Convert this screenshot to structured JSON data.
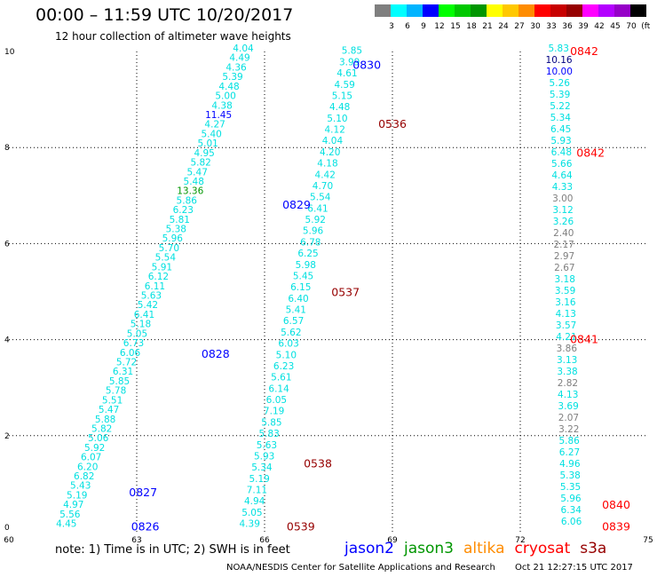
{
  "title": "00:00 – 11:59 UTC 10/20/2017",
  "subtitle": "12 hour collection of altimeter wave heights",
  "note": "note: 1) Time is in UTC; 2) SWH is in feet",
  "footer_left": "NOAA/NESDIS Center for Satellite Applications and Research",
  "footer_right": "Oct 21 12:27:15 UTC 2017",
  "colorbar": {
    "colors": [
      "#7f7f7f",
      "#00ffff",
      "#00b4ff",
      "#0000ff",
      "#00ff00",
      "#00c800",
      "#009600",
      "#ffff00",
      "#ffc800",
      "#ff8c00",
      "#ff0000",
      "#c80000",
      "#960000",
      "#ff00ff",
      "#b400ff",
      "#9600c8",
      "#000000"
    ],
    "labels": [
      "3",
      "6",
      "9",
      "12",
      "15",
      "18",
      "21",
      "24",
      "27",
      "30",
      "33",
      "36",
      "39",
      "42",
      "45",
      "70",
      "(ft)"
    ]
  },
  "legend": [
    {
      "name": "jason2",
      "color": "#0000ff"
    },
    {
      "name": "jason3",
      "color": "#009600"
    },
    {
      "name": "altika",
      "color": "#ff8c00"
    },
    {
      "name": "cryosat",
      "color": "#ff0000"
    },
    {
      "name": "s3a",
      "color": "#960000"
    }
  ],
  "chart_data": {
    "type": "scatter",
    "xlim": [
      60,
      75
    ],
    "ylim": [
      0,
      10
    ],
    "x_ticks": [
      "60",
      "63",
      "66",
      "69",
      "72",
      "75"
    ],
    "y_ticks": [
      "0",
      "2",
      "4",
      "6",
      "8",
      "10"
    ],
    "grid": true,
    "series": [
      {
        "name": "jason2",
        "color": "#0000ff",
        "points": [
          {
            "x": 63.2,
            "y": 0.1,
            "label": "0826"
          },
          {
            "x": 63.15,
            "y": 0.81,
            "label": "0827"
          },
          {
            "x": 64.85,
            "y": 3.7,
            "label": "0828"
          },
          {
            "x": 66.75,
            "y": 6.8,
            "label": "0829"
          },
          {
            "x": 68.4,
            "y": 9.71,
            "label": "0830"
          }
        ]
      },
      {
        "name": "s3a",
        "color": "#960000",
        "points": [
          {
            "x": 66.85,
            "y": 0.1,
            "label": "0539"
          },
          {
            "x": 67.25,
            "y": 1.41,
            "label": "0538"
          },
          {
            "x": 67.9,
            "y": 4.98,
            "label": "0537"
          },
          {
            "x": 69.0,
            "y": 8.48,
            "label": "0536"
          }
        ]
      },
      {
        "name": "cryosat",
        "color": "#ff0000",
        "points": [
          {
            "x": 74.25,
            "y": 0.1,
            "label": "0839"
          },
          {
            "x": 74.25,
            "y": 0.55,
            "label": "0840"
          },
          {
            "x": 73.5,
            "y": 4.0,
            "label": "0841"
          },
          {
            "x": 73.65,
            "y": 7.88,
            "label": "0842"
          },
          {
            "x": 73.5,
            "y": 10.0,
            "label": "0842"
          }
        ]
      }
    ],
    "tracks": [
      {
        "color": "#00e0e0",
        "start": [
          61.35,
          0.1
        ],
        "end": [
          65.5,
          10.0
        ],
        "values": [
          "4.45",
          "5.56",
          "4.97",
          "5.19",
          "5.43",
          "6.82",
          "6.20",
          "6.07",
          "5.92",
          "5.06",
          "5.82",
          "5.88",
          "5.47",
          "5.51",
          "5.78",
          "5.85",
          "6.31",
          "5.72",
          "6.06",
          "6.73",
          "5.05",
          "5.18",
          "6.41",
          "5.42",
          "5.63",
          "6.11",
          "6.12",
          "5.91",
          "5.54",
          "5.70",
          "5.96",
          "5.38",
          "5.81",
          "6.23",
          "5.86",
          "13.36",
          "5.48",
          "5.47",
          "5.82",
          "4.95",
          "5.01",
          "5.40",
          "4.27",
          "11.45",
          "4.38",
          "5.00",
          "4.48",
          "5.39",
          "4.36",
          "4.49",
          "4.04"
        ],
        "colors": {
          "11.45": "#0000ff",
          "13.36": "#009600"
        }
      },
      {
        "color": "#00e0e0",
        "start": [
          65.65,
          0.1
        ],
        "end": [
          68.05,
          9.95
        ],
        "values": [
          "4.39",
          "5.05",
          "4.94",
          "7.11",
          "5.19",
          "5.34",
          "5.93",
          "5.63",
          "5.83",
          "5.85",
          "7.19",
          "6.05",
          "6.14",
          "5.61",
          "6.23",
          "5.10",
          "6.03",
          "5.62",
          "6.57",
          "5.41",
          "6.40",
          "6.15",
          "5.45",
          "5.98",
          "6.25",
          "6.78",
          "5.96",
          "5.92",
          "6.41",
          "5.54",
          "4.70",
          "4.42",
          "4.18",
          "4.20",
          "4.04",
          "4.12",
          "5.10",
          "4.48",
          "5.15",
          "4.59",
          "4.61",
          "3.99",
          "5.85"
        ],
        "colors": {}
      },
      {
        "color": "#00e0e0",
        "start": [
          73.2,
          0.15
        ],
        "end": [
          72.9,
          10.0
        ],
        "values": [
          "6.06",
          "6.34",
          "5.96",
          "5.35",
          "5.38",
          "4.96",
          "6.27",
          "5.86",
          "3.22",
          "2.07",
          "3.69",
          "4.13",
          "2.82",
          "3.38",
          "3.13",
          "3.86",
          "4.21",
          "3.57",
          "4.13",
          "3.16",
          "3.59",
          "3.18",
          "2.67",
          "2.97",
          "2.17",
          "2.40",
          "3.26",
          "3.12",
          "3.00",
          "4.33",
          "4.64",
          "5.66",
          "6.48",
          "5.93",
          "6.45",
          "5.34",
          "5.22",
          "5.39",
          "5.26",
          "10.00",
          "10.16",
          "5.83"
        ],
        "colors": {
          "10.00": "#0000ff",
          "10.16": "#000080",
          "3.00": "#7f7f7f",
          "2.07": "#7f7f7f",
          "3.22": "#7f7f7f",
          "2.82": "#7f7f7f",
          "2.40": "#7f7f7f",
          "2.17": "#7f7f7f",
          "2.97": "#7f7f7f",
          "2.67": "#7f7f7f",
          "3.86": "#7f7f7f"
        }
      }
    ]
  }
}
